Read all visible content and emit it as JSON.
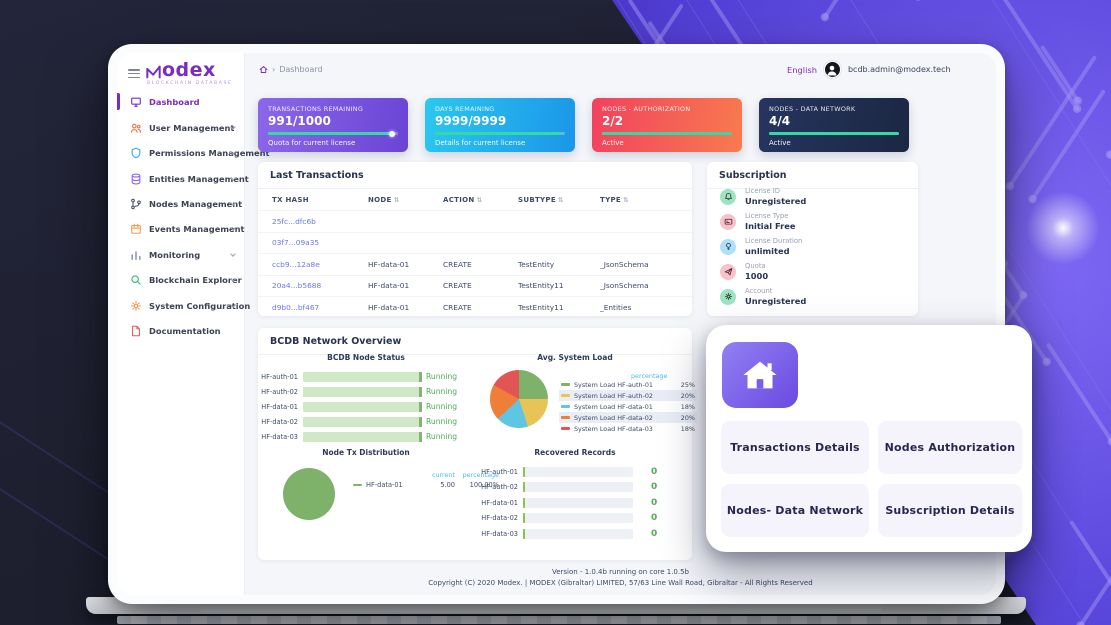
{
  "header": {
    "breadcrumb": "Dashboard",
    "language": "English",
    "email": "bcdb.admin@modex.tech"
  },
  "logo": {
    "name": "odex",
    "full_name": "Modex",
    "subtitle": "BLOCKCHAIN DATABASE"
  },
  "sidebar": {
    "items": [
      {
        "label": "Dashboard",
        "icon": "monitor-icon",
        "active": true,
        "expandable": false
      },
      {
        "label": "User Management",
        "icon": "users-icon",
        "active": false,
        "expandable": true
      },
      {
        "label": "Permissions Management",
        "icon": "shield-icon",
        "active": false,
        "expandable": true
      },
      {
        "label": "Entities Management",
        "icon": "database-icon",
        "active": false,
        "expandable": true
      },
      {
        "label": "Nodes Management",
        "icon": "nodes-icon",
        "active": false,
        "expandable": true
      },
      {
        "label": "Events Management",
        "icon": "calendar-icon",
        "active": false,
        "expandable": true
      },
      {
        "label": "Monitoring",
        "icon": "bar-chart-icon",
        "active": false,
        "expandable": true
      },
      {
        "label": "Blockchain Explorer",
        "icon": "search-icon",
        "active": false,
        "expandable": true
      },
      {
        "label": "System Configuration",
        "icon": "gear-icon",
        "active": false,
        "expandable": true
      },
      {
        "label": "Documentation",
        "icon": "file-icon",
        "active": false,
        "expandable": false
      }
    ]
  },
  "stat_cards": [
    {
      "label": "TRANSACTIONS REMAINING",
      "value": "991/1000",
      "subtext": "Quota for current license",
      "progress_pct": 95,
      "gradient": [
        "#8b68ea",
        "#6a44d4"
      ]
    },
    {
      "label": "DAYS REMAINING",
      "value": "9999/9999",
      "subtext": "Details for current license",
      "progress_pct": 97,
      "gradient": [
        "#2cc7ef",
        "#1b96e8"
      ]
    },
    {
      "label": "NODES - AUTHORIZATION",
      "value": "2/2",
      "subtext": "Active",
      "progress_pct": 100,
      "gradient": [
        "#f2415f",
        "#f87b4e"
      ]
    },
    {
      "label": "NODES - DATA NETWORK",
      "value": "4/4",
      "subtext": "Active",
      "progress_pct": 100,
      "gradient": [
        "#263560",
        "#1b2742"
      ]
    }
  ],
  "transactions": {
    "title": "Last Transactions",
    "columns": [
      "TX HASH",
      "NODE",
      "ACTION",
      "SUBTYPE",
      "TYPE"
    ],
    "sortable_columns": [
      "NODE",
      "ACTION",
      "SUBTYPE",
      "TYPE"
    ],
    "rows": [
      {
        "hash": "25fc...dfc6b",
        "node": "",
        "action": "",
        "subtype": "",
        "type": ""
      },
      {
        "hash": "03f7...09a35",
        "node": "",
        "action": "",
        "subtype": "",
        "type": ""
      },
      {
        "hash": "ccb9...12a8e",
        "node": "HF-data-01",
        "action": "CREATE",
        "subtype": "TestEntity",
        "type": "_JsonSchema"
      },
      {
        "hash": "20a4...b5688",
        "node": "HF-data-01",
        "action": "CREATE",
        "subtype": "TestEntity11",
        "type": "_JsonSchema"
      },
      {
        "hash": "d9b0...bf467",
        "node": "HF-data-01",
        "action": "CREATE",
        "subtype": "TestEntity11",
        "type": "_Entities"
      }
    ]
  },
  "subscription": {
    "title": "Subscription",
    "items": [
      {
        "label": "License ID",
        "value": "Unregistered",
        "icon": "bell-icon",
        "icon_bg": "#9fe3c3"
      },
      {
        "label": "License Type",
        "value": "Initial Free",
        "icon": "id-card-icon",
        "icon_bg": "#f7c2cc"
      },
      {
        "label": "License Duration",
        "value": "unlimited",
        "icon": "bulb-icon",
        "icon_bg": "#aee0f7"
      },
      {
        "label": "Quota",
        "value": "1000",
        "icon": "send-icon",
        "icon_bg": "#f7c2cc"
      },
      {
        "label": "Account",
        "value": "Unregistered",
        "icon": "gear-icon",
        "icon_bg": "#9fe3c3"
      }
    ]
  },
  "network": {
    "title": "BCDB Network Overview",
    "node_status": {
      "title": "BCDB Node Status",
      "nodes": [
        {
          "name": "HF-auth-01",
          "status": "Running"
        },
        {
          "name": "HF-auth-02",
          "status": "Running"
        },
        {
          "name": "HF-data-01",
          "status": "Running"
        },
        {
          "name": "HF-data-02",
          "status": "Running"
        },
        {
          "name": "HF-data-03",
          "status": "Running"
        }
      ]
    },
    "system_load": {
      "title": "Avg. System Load",
      "col_header": "percentage",
      "series": [
        {
          "name": "System Load HF-auth-01",
          "value": "25%",
          "color": "#7eb169"
        },
        {
          "name": "System Load HF-auth-02",
          "value": "20%",
          "color": "#e8c355"
        },
        {
          "name": "System Load HF-data-01",
          "value": "18%",
          "color": "#5ec5e4"
        },
        {
          "name": "System Load HF-data-02",
          "value": "20%",
          "color": "#ee7e38"
        },
        {
          "name": "System Load HF-data-03",
          "value": "18%",
          "color": "#e25555"
        }
      ]
    },
    "tx_distribution": {
      "title": "Node Tx Distribution",
      "col1": "current",
      "col2": "percentage",
      "name": "HF-data-01",
      "current": "5.00",
      "percentage": "100.00%",
      "color": "#7eb169"
    },
    "recovered": {
      "title": "Recovered Records",
      "rows": [
        {
          "name": "HF-auth-01",
          "value": "0"
        },
        {
          "name": "HF-auth-02",
          "value": "0"
        },
        {
          "name": "HF-data-01",
          "value": "0"
        },
        {
          "name": "HF-data-02",
          "value": "0"
        },
        {
          "name": "HF-data-03",
          "value": "0"
        }
      ]
    }
  },
  "overlay": {
    "buttons": [
      {
        "label": "Transactions Details"
      },
      {
        "label": "Nodes Authorization"
      },
      {
        "label": "Nodes- Data Network"
      },
      {
        "label": "Subscription Details"
      }
    ]
  },
  "footer": {
    "version": "Version - 1.0.4b running on core 1.0.5b",
    "copyright": "Copyright (C) 2020 Modex. | MODEX (Gibraltar) LIMITED, 57/63 Line Wall Road, Gibraltar - All Rights Reserved"
  },
  "chart_data": [
    {
      "type": "pie",
      "title": "Avg. System Load",
      "categories": [
        "System Load HF-auth-01",
        "System Load HF-auth-02",
        "System Load HF-data-01",
        "System Load HF-data-02",
        "System Load HF-data-03"
      ],
      "values": [
        25,
        20,
        18,
        20,
        18
      ],
      "unit": "percent",
      "colors": [
        "#7eb169",
        "#e8c355",
        "#5ec5e4",
        "#ee7e38",
        "#e25555"
      ],
      "legend_position": "right"
    },
    {
      "type": "pie",
      "title": "Node Tx Distribution",
      "categories": [
        "HF-data-01"
      ],
      "values": [
        100
      ],
      "current": [
        5.0
      ],
      "colors": [
        "#7eb169"
      ],
      "legend_position": "right"
    },
    {
      "type": "bar",
      "title": "Recovered Records",
      "categories": [
        "HF-auth-01",
        "HF-auth-02",
        "HF-data-01",
        "HF-data-02",
        "HF-data-03"
      ],
      "values": [
        0,
        0,
        0,
        0,
        0
      ],
      "orientation": "horizontal"
    }
  ]
}
